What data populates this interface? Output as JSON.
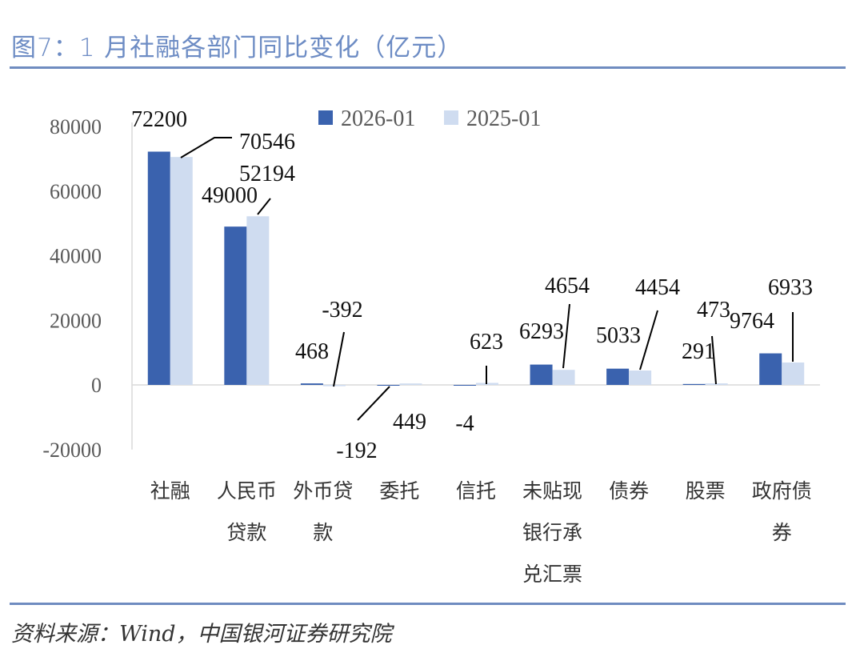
{
  "title": "图7：1 月社融各部门同比变化（亿元）",
  "source": "资料来源：Wind，中国银河证券研究院",
  "chart_data": {
    "type": "bar",
    "title": "图7：1 月社融各部门同比变化（亿元）",
    "xlabel": "",
    "ylabel": "",
    "ylim": [
      -20000,
      80000
    ],
    "yticks": [
      "80000",
      "60000",
      "40000",
      "20000",
      "0",
      "-20000"
    ],
    "categories": [
      [
        "社融"
      ],
      [
        "人民币",
        "贷款"
      ],
      [
        "外币贷",
        "款"
      ],
      [
        "委托"
      ],
      [
        "信托"
      ],
      [
        "未贴现",
        "银行承",
        "兑汇票"
      ],
      [
        "债券"
      ],
      [
        "股票"
      ],
      [
        "政府债",
        "券"
      ]
    ],
    "series": [
      {
        "name": "2026-01",
        "color": "#3a62ae",
        "values": [
          72200,
          49000,
          468,
          -192,
          -4,
          6293,
          5033,
          291,
          9764
        ]
      },
      {
        "name": "2025-01",
        "color": "#cfdcf0",
        "values": [
          70546,
          52194,
          -392,
          449,
          623,
          4654,
          4454,
          473,
          6933
        ]
      }
    ],
    "legend": "top"
  }
}
